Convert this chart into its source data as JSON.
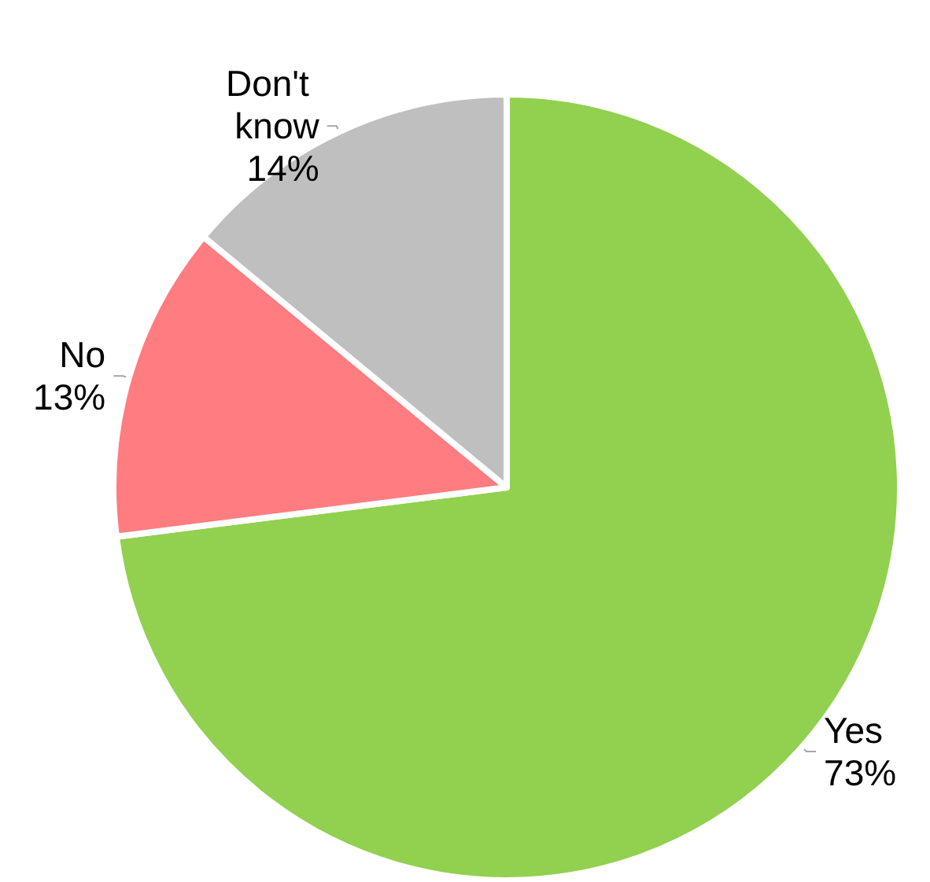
{
  "chart_data": {
    "type": "pie",
    "categories": [
      "Yes",
      "No",
      "Don't know"
    ],
    "values": [
      73,
      13,
      14
    ],
    "value_labels": [
      "73%",
      "13%",
      "14%"
    ],
    "colors": [
      "#92d050",
      "#ff7c80",
      "#bfbfbf"
    ],
    "legend": false
  }
}
